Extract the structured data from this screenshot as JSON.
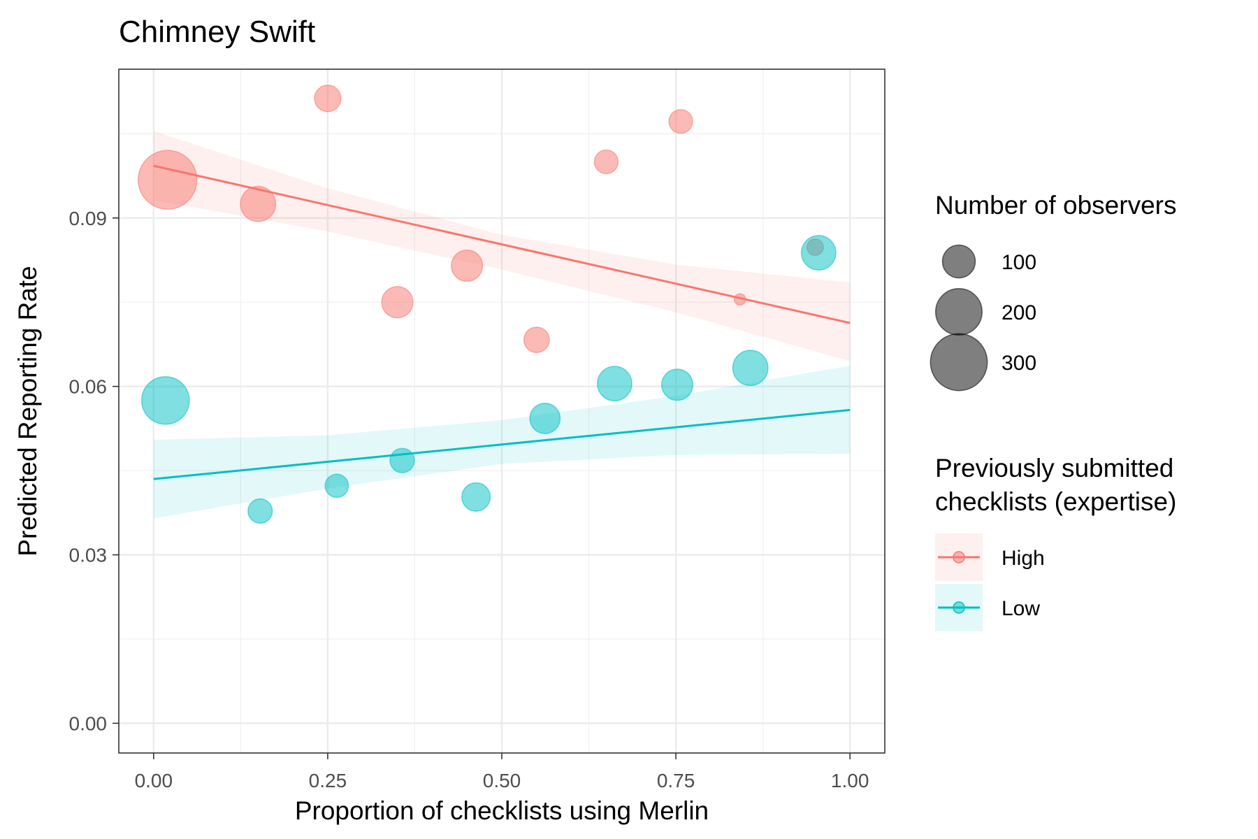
{
  "chart_data": {
    "type": "scatter",
    "title": "Chimney Swift",
    "xlabel": "Proportion of checklists using Merlin",
    "ylabel": "Predicted Reporting Rate",
    "xlim": [
      -0.05,
      1.05
    ],
    "ylim": [
      -0.0053,
      0.1165
    ],
    "x_ticks": [
      0.0,
      0.25,
      0.5,
      0.75,
      1.0
    ],
    "x_tick_labels": [
      "0.00",
      "0.25",
      "0.50",
      "0.75",
      "1.00"
    ],
    "y_ticks": [
      0.0,
      0.03,
      0.06,
      0.09
    ],
    "y_tick_labels": [
      "0.00",
      "0.03",
      "0.06",
      "0.09"
    ],
    "grid": true,
    "size_legend": {
      "title": "Number of observers",
      "entries": [
        {
          "label": "100",
          "value": 100
        },
        {
          "label": "200",
          "value": 200
        },
        {
          "label": "300",
          "value": 300
        }
      ]
    },
    "color_legend": {
      "title_lines": [
        "Previously submitted",
        "checklists (expertise)"
      ],
      "placement": "right"
    },
    "series": [
      {
        "name": "High",
        "color": "#F8766D",
        "points": [
          {
            "x": 0.02,
            "y": 0.0968,
            "n": 320
          },
          {
            "x": 0.15,
            "y": 0.0925,
            "n": 115
          },
          {
            "x": 0.25,
            "y": 0.1113,
            "n": 65
          },
          {
            "x": 0.35,
            "y": 0.075,
            "n": 90
          },
          {
            "x": 0.45,
            "y": 0.0815,
            "n": 90
          },
          {
            "x": 0.55,
            "y": 0.0683,
            "n": 60
          },
          {
            "x": 0.65,
            "y": 0.1,
            "n": 52
          },
          {
            "x": 0.757,
            "y": 0.1072,
            "n": 52
          },
          {
            "x": 0.842,
            "y": 0.0755,
            "n": 12
          },
          {
            "x": 0.95,
            "y": 0.0848,
            "n": 25
          }
        ],
        "fit": {
          "x": [
            0.0,
            1.0
          ],
          "y": [
            0.0993,
            0.0713
          ]
        },
        "band": {
          "x": [
            0.0,
            0.25,
            0.5,
            0.75,
            1.0
          ],
          "lower": [
            0.0932,
            0.0876,
            0.0808,
            0.0732,
            0.0645
          ],
          "upper": [
            0.1055,
            0.0953,
            0.087,
            0.0817,
            0.0785
          ]
        }
      },
      {
        "name": "Low",
        "color": "#00BFC4",
        "points": [
          {
            "x": 0.017,
            "y": 0.0575,
            "n": 210
          },
          {
            "x": 0.153,
            "y": 0.0378,
            "n": 55
          },
          {
            "x": 0.263,
            "y": 0.0423,
            "n": 50
          },
          {
            "x": 0.357,
            "y": 0.0468,
            "n": 55
          },
          {
            "x": 0.463,
            "y": 0.0403,
            "n": 75
          },
          {
            "x": 0.562,
            "y": 0.0543,
            "n": 85
          },
          {
            "x": 0.662,
            "y": 0.0605,
            "n": 110
          },
          {
            "x": 0.752,
            "y": 0.0603,
            "n": 90
          },
          {
            "x": 0.857,
            "y": 0.0633,
            "n": 115
          },
          {
            "x": 0.955,
            "y": 0.0838,
            "n": 110
          }
        ],
        "fit": {
          "x": [
            0.0,
            1.0
          ],
          "y": [
            0.0435,
            0.0558
          ]
        },
        "band": {
          "x": [
            0.0,
            0.25,
            0.5,
            0.75,
            1.0
          ],
          "lower": [
            0.0365,
            0.0418,
            0.0462,
            0.0478,
            0.048
          ],
          "upper": [
            0.0505,
            0.0513,
            0.054,
            0.0583,
            0.0637
          ]
        }
      }
    ]
  }
}
